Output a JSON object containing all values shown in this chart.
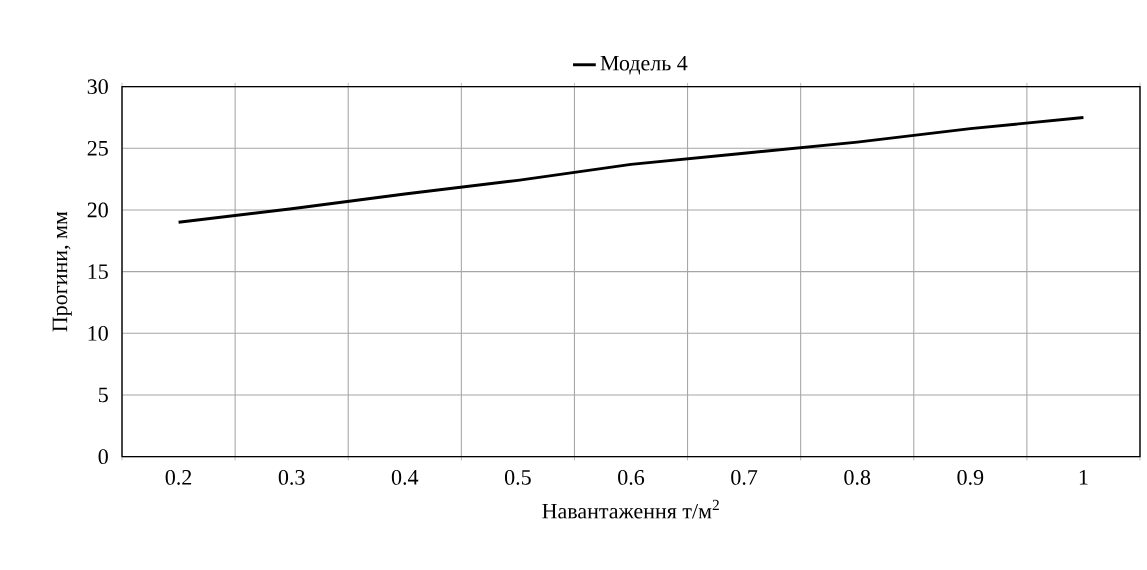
{
  "chart_data": {
    "type": "line",
    "xlabel": "Навантаження т/м$^{2}$",
    "ylabel": "Прогини, мм",
    "categories": [
      "0.2",
      "0.3",
      "0.4",
      "0.5",
      "0.6",
      "0.7",
      "0.8",
      "0.9",
      "1"
    ],
    "series": [
      {
        "name": "Модель 4",
        "color": "#000000",
        "values": [
          19.0,
          20.1,
          21.3,
          22.4,
          23.7,
          24.6,
          25.5,
          26.6,
          27.5
        ]
      }
    ],
    "ylim": [
      0,
      30
    ],
    "yticks": [
      0,
      5,
      10,
      15,
      20,
      25,
      30
    ],
    "grid": true,
    "legend": "top",
    "marker": "none",
    "line_style": "solid"
  }
}
